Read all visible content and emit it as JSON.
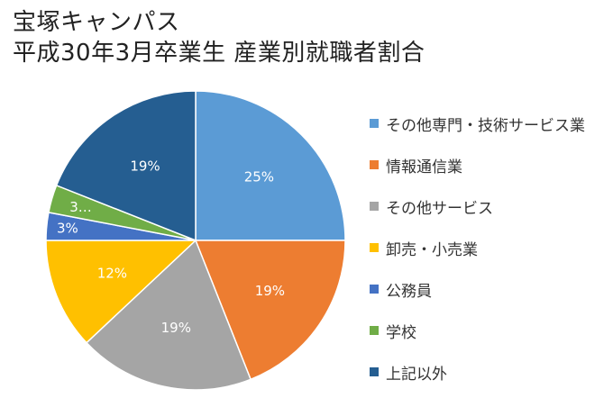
{
  "chart_data": {
    "type": "pie",
    "title_lines": [
      "宝塚キャンパス",
      "平成30年3月卒業生 産業別就職者割合"
    ],
    "categories": [
      "その他専門・技術サービス業",
      "情報通信業",
      "その他サービス",
      "卸売・小売業",
      "公務員",
      "学校",
      "上記以外"
    ],
    "values": [
      25,
      19,
      19,
      12,
      3,
      3,
      19
    ],
    "data_labels": [
      "25%",
      "19%",
      "19%",
      "12%",
      "3%",
      "3…",
      "19%"
    ],
    "colors": [
      "#5B9BD5",
      "#ED7D31",
      "#A5A5A5",
      "#FFC000",
      "#4472C4",
      "#70AD47",
      "#255E91"
    ],
    "legend_position": "right",
    "start_angle": "12 o'clock",
    "direction": "clockwise"
  }
}
